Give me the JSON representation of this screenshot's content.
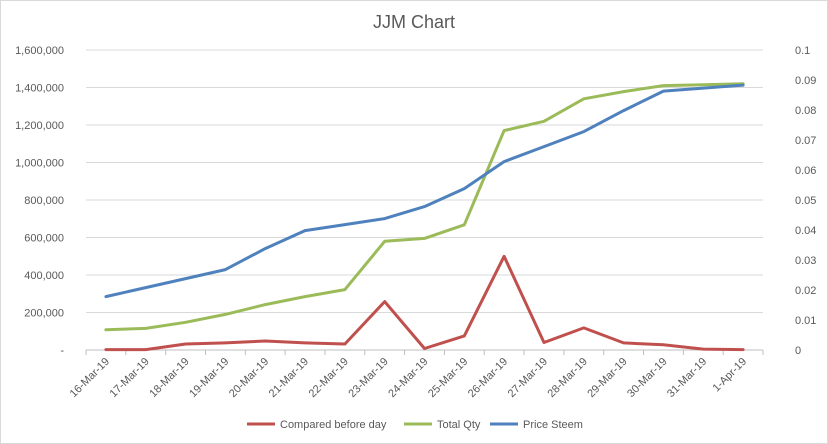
{
  "chart_data": {
    "type": "line",
    "title": "JJM Chart",
    "categories": [
      "16-Mar-19",
      "17-Mar-19",
      "18-Mar-19",
      "19-Mar-19",
      "20-Mar-19",
      "21-Mar-19",
      "22-Mar-19",
      "23-Mar-19",
      "24-Mar-19",
      "25-Mar-19",
      "26-Mar-19",
      "27-Mar-19",
      "28-Mar-19",
      "29-Mar-19",
      "30-Mar-19",
      "31-Mar-19",
      "1-Apr-19"
    ],
    "y_left": {
      "ylim": [
        0,
        1600000
      ],
      "ticks": [
        "-",
        "200,000",
        "400,000",
        "600,000",
        "800,000",
        "1,000,000",
        "1,200,000",
        "1,400,000",
        "1,600,000"
      ]
    },
    "y_right": {
      "ylim": [
        0,
        0.1
      ],
      "ticks": [
        "0",
        "0.01",
        "0.02",
        "0.03",
        "0.04",
        "0.05",
        "0.06",
        "0.07",
        "0.08",
        "0.09",
        "0.1"
      ]
    },
    "grid": true,
    "legend_position": "bottom",
    "series": [
      {
        "name": "Compared before day",
        "axis": "left",
        "color": "#C0504D",
        "values": [
          2000,
          2000,
          32000,
          38000,
          48000,
          38000,
          32000,
          258000,
          8000,
          75000,
          500000,
          40000,
          118000,
          38000,
          28000,
          5000,
          2000
        ]
      },
      {
        "name": "Total Qty",
        "axis": "left",
        "color": "#9BBB59",
        "values": [
          108000,
          115000,
          148000,
          190000,
          242000,
          285000,
          322000,
          580000,
          595000,
          668000,
          1170000,
          1220000,
          1340000,
          1378000,
          1410000,
          1415000,
          1420000
        ]
      },
      {
        "name": "Price Steem",
        "axis": "right",
        "color": "#4F81BD",
        "values": [
          0.0178,
          0.0208,
          0.0238,
          0.0268,
          0.0338,
          0.0398,
          0.0418,
          0.0438,
          0.0478,
          0.0538,
          0.0628,
          0.0678,
          0.0728,
          0.0798,
          0.0863,
          0.0873,
          0.0883
        ]
      }
    ]
  }
}
